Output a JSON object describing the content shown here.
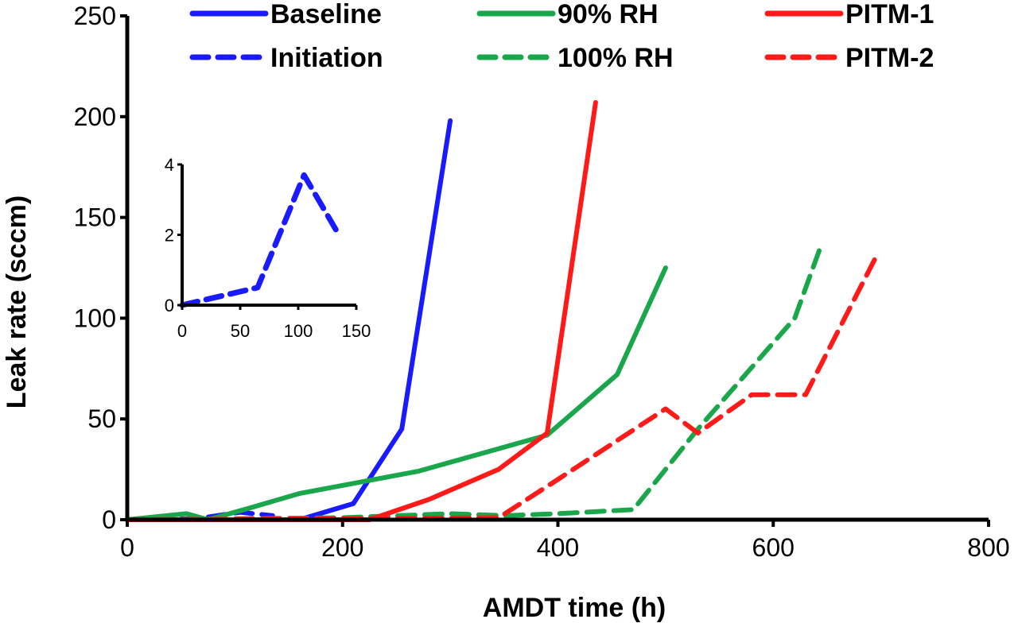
{
  "chart_data": [
    {
      "type": "line",
      "title": "",
      "xlabel": "AMDT time (h)",
      "ylabel": "Leak rate (sccm)",
      "xlim": [
        0,
        800
      ],
      "ylim": [
        0,
        250
      ],
      "xticks": [
        0,
        200,
        400,
        600,
        800
      ],
      "yticks": [
        0,
        50,
        100,
        150,
        200,
        250
      ],
      "xtick_labels": [
        "0",
        "200",
        "400",
        "600",
        "800"
      ],
      "ytick_labels": [
        "0",
        "50",
        "100",
        "150",
        "200",
        "250"
      ],
      "grid": false,
      "legend_position": "top",
      "series": [
        {
          "name": "Baseline",
          "color": "#1a1aff",
          "dash": "solid",
          "x": [
            0,
            160,
            210,
            255,
            300
          ],
          "y": [
            0,
            0,
            8,
            45,
            198
          ]
        },
        {
          "name": "Initiation",
          "color": "#1a1aff",
          "dash": "dashed",
          "x": [
            0,
            65,
            105,
            135
          ],
          "y": [
            0,
            0.5,
            3.7,
            2
          ]
        },
        {
          "name": "90% RH",
          "color": "#1aa64a",
          "dash": "solid",
          "x": [
            0,
            55,
            75,
            115,
            160,
            270,
            390,
            455,
            500
          ],
          "y": [
            0,
            3,
            0,
            6,
            13,
            24,
            42,
            72,
            125
          ]
        },
        {
          "name": "100% RH",
          "color": "#1aa64a",
          "dash": "dashed",
          "x": [
            0,
            200,
            300,
            350,
            400,
            470,
            530,
            620,
            645
          ],
          "y": [
            0,
            1,
            3,
            2,
            3,
            5,
            45,
            100,
            137
          ]
        },
        {
          "name": "PITM-1",
          "color": "#ff1a1a",
          "dash": "solid",
          "x": [
            0,
            225,
            280,
            345,
            390,
            435
          ],
          "y": [
            0,
            0,
            10,
            25,
            43,
            207
          ]
        },
        {
          "name": "PITM-2",
          "color": "#ff1a1a",
          "dash": "dashed",
          "x": [
            0,
            345,
            400,
            500,
            530,
            580,
            630,
            695
          ],
          "y": [
            0,
            1,
            20,
            55,
            43,
            62,
            62,
            130
          ]
        }
      ]
    },
    {
      "type": "line",
      "title": "",
      "xlabel": "",
      "ylabel": "",
      "xlim": [
        0,
        150
      ],
      "ylim": [
        0,
        4
      ],
      "xticks": [
        0,
        50,
        100,
        150
      ],
      "yticks": [
        0,
        2,
        4
      ],
      "xtick_labels": [
        "0",
        "50",
        "100",
        "150"
      ],
      "ytick_labels": [
        "0",
        "2",
        "4"
      ],
      "grid": false,
      "legend_position": "none",
      "series": [
        {
          "name": "Initiation",
          "color": "#1a1aff",
          "dash": "dashed",
          "x": [
            0,
            65,
            105,
            135
          ],
          "y": [
            0,
            0.5,
            3.7,
            2
          ]
        }
      ]
    }
  ]
}
